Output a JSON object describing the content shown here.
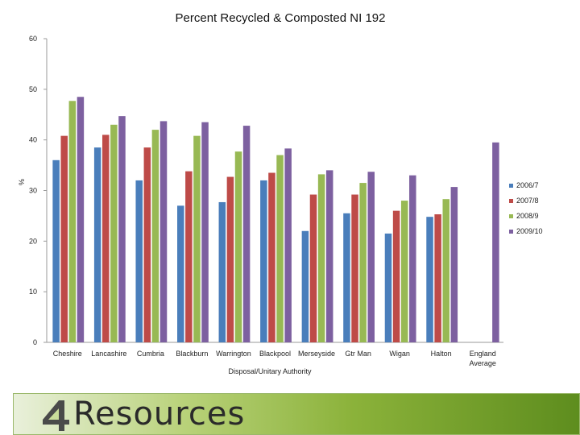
{
  "chart_data": {
    "type": "bar",
    "title": "Percent Recycled & Composted NI 192",
    "xlabel": "Disposal/Unitary Authority",
    "ylabel": "%",
    "ylim": [
      0,
      60
    ],
    "yticks": [
      0,
      10,
      20,
      30,
      40,
      50,
      60
    ],
    "grid": false,
    "legend_position": "right",
    "categories": [
      "Cheshire",
      "Lancashire",
      "Cumbria",
      "Blackburn",
      "Warrington",
      "Blackpool",
      "Merseyside",
      "Gtr Man",
      "Wigan",
      "Halton",
      "England Average"
    ],
    "series": [
      {
        "name": "2006/7",
        "color": "#4a7ebb",
        "values": [
          36,
          38.5,
          32,
          27,
          27.7,
          32,
          22,
          25.5,
          21.5,
          24.8,
          null
        ]
      },
      {
        "name": "2007/8",
        "color": "#be4b48",
        "values": [
          40.8,
          41,
          38.5,
          33.8,
          32.7,
          33.5,
          29.2,
          29.2,
          26,
          25.3,
          null
        ]
      },
      {
        "name": "2008/9",
        "color": "#98b954",
        "values": [
          47.7,
          43,
          42,
          40.8,
          37.7,
          37,
          33.2,
          31.5,
          28,
          28.3,
          null
        ]
      },
      {
        "name": "2009/10",
        "color": "#7d60a0",
        "values": [
          48.5,
          44.7,
          43.7,
          43.5,
          42.8,
          38.3,
          34,
          33.7,
          33,
          30.7,
          39.5
        ]
      }
    ]
  },
  "banner": {
    "brand_mark": "4",
    "brand_text": "Resources"
  }
}
